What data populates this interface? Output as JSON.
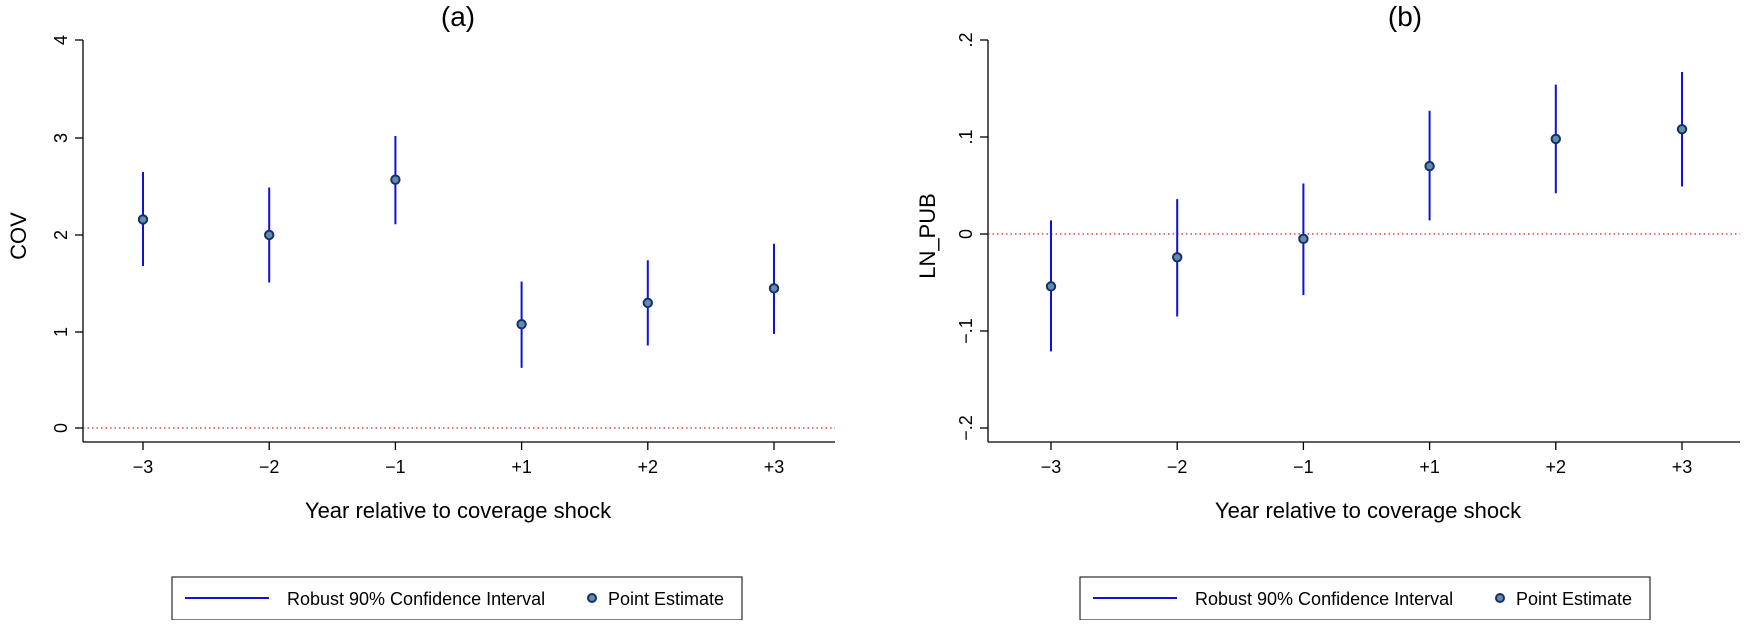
{
  "chart_data": [
    {
      "type": "scatter",
      "title": "(a)",
      "xlabel": "Year relative to coverage shock",
      "ylabel": "COV",
      "categories": [
        "−3",
        "−2",
        "−1",
        "+1",
        "+2",
        "+3"
      ],
      "ylim": [
        0,
        4
      ],
      "yticks": [
        "0",
        "1",
        "2",
        "3",
        "4"
      ],
      "series": [
        {
          "name": "Point Estimate",
          "values": [
            2.15,
            1.99,
            2.56,
            1.07,
            1.29,
            1.44
          ]
        },
        {
          "name": "Robust 90% Confidence Interval",
          "lower": [
            1.67,
            1.5,
            2.1,
            0.62,
            0.85,
            0.97
          ],
          "upper": [
            2.64,
            2.48,
            3.01,
            1.51,
            1.73,
            1.9
          ]
        }
      ],
      "reference_line": 0,
      "grid": false,
      "legend_position": "bottom"
    },
    {
      "type": "scatter",
      "title": "(b)",
      "xlabel": "Year relative to coverage shock",
      "ylabel": "LN_PUB",
      "categories": [
        "−3",
        "−2",
        "−1",
        "+1",
        "+2",
        "+3"
      ],
      "ylim": [
        -0.2,
        0.2
      ],
      "yticks": [
        "−.2",
        "−.1",
        "0",
        ".1",
        ".2"
      ],
      "series": [
        {
          "name": "Point Estimate",
          "values": [
            -0.054,
            -0.024,
            -0.005,
            0.07,
            0.098,
            0.108
          ]
        },
        {
          "name": "Robust 90% Confidence Interval",
          "lower": [
            -0.121,
            -0.085,
            -0.063,
            0.014,
            0.042,
            0.049
          ],
          "upper": [
            0.014,
            0.036,
            0.052,
            0.127,
            0.154,
            0.167
          ]
        }
      ],
      "reference_line": 0,
      "grid": false,
      "legend_position": "bottom"
    }
  ],
  "legend": {
    "ci_label": "Robust 90% Confidence Interval",
    "point_label": "Point Estimate"
  },
  "colors": {
    "ci_line": "#1010d8",
    "marker_stroke": "#1a2e6e",
    "marker_fill": "#5f8fa6",
    "reference_line": "#d62020"
  }
}
